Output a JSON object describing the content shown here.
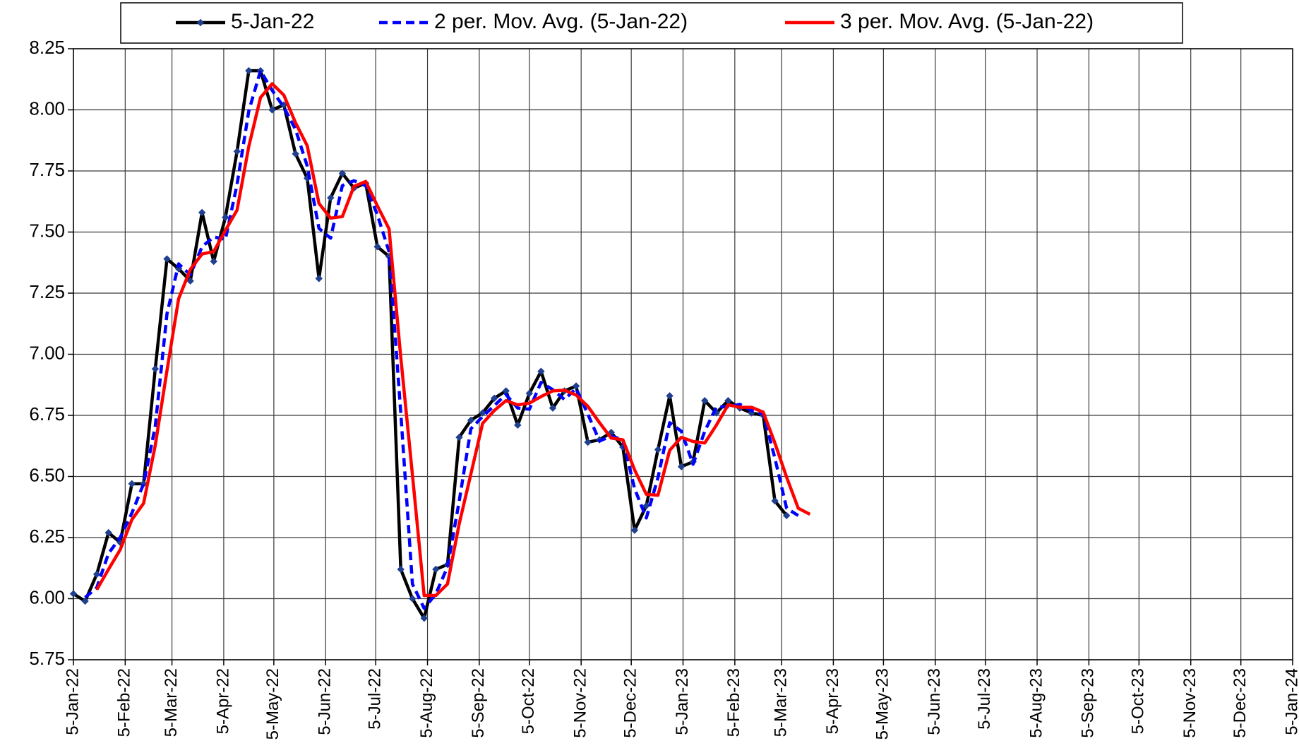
{
  "chart_data": {
    "type": "line",
    "x": [
      "2022-01-05",
      "2022-01-12",
      "2022-01-19",
      "2022-01-26",
      "2022-02-02",
      "2022-02-09",
      "2022-02-16",
      "2022-02-23",
      "2022-03-02",
      "2022-03-09",
      "2022-03-16",
      "2022-03-23",
      "2022-03-30",
      "2022-04-06",
      "2022-04-13",
      "2022-04-20",
      "2022-04-27",
      "2022-05-04",
      "2022-05-11",
      "2022-05-18",
      "2022-05-25",
      "2022-06-01",
      "2022-06-08",
      "2022-06-15",
      "2022-06-22",
      "2022-06-29",
      "2022-07-06",
      "2022-07-13",
      "2022-07-20",
      "2022-07-27",
      "2022-08-03",
      "2022-08-10",
      "2022-08-17",
      "2022-08-24",
      "2022-08-31",
      "2022-09-07",
      "2022-09-14",
      "2022-09-21",
      "2022-09-28",
      "2022-10-05",
      "2022-10-12",
      "2022-10-19",
      "2022-10-26",
      "2022-11-02",
      "2022-11-09",
      "2022-11-16",
      "2022-11-23",
      "2022-11-30",
      "2022-12-07",
      "2022-12-14",
      "2022-12-21",
      "2022-12-28",
      "2023-01-04",
      "2023-01-11",
      "2023-01-18",
      "2023-01-25",
      "2023-02-01",
      "2023-02-08",
      "2023-02-15",
      "2023-02-22",
      "2023-03-01",
      "2023-03-08",
      "2023-03-15",
      "2023-03-22"
    ],
    "series": [
      {
        "name": "5-Jan-22",
        "color": "#000000",
        "marker_color": "#1f3f8f",
        "style": "solid",
        "values": [
          6.02,
          5.99,
          6.1,
          6.27,
          6.23,
          6.47,
          6.47,
          6.94,
          7.39,
          7.35,
          7.3,
          7.58,
          7.38,
          7.56,
          7.83,
          8.16,
          8.16,
          8.0,
          8.02,
          7.82,
          7.72,
          7.31,
          7.64,
          7.74,
          7.68,
          7.7,
          7.44,
          7.4,
          6.12,
          6.0,
          5.92,
          6.12,
          6.14,
          6.66,
          6.73,
          6.76,
          6.82,
          6.85,
          6.71,
          6.84,
          6.93,
          6.78,
          6.85,
          6.87,
          6.64,
          6.65,
          6.68,
          6.62,
          6.28,
          6.38,
          6.61,
          6.83,
          6.54,
          6.56,
          6.81,
          6.76,
          6.81,
          6.78,
          6.76,
          6.75,
          6.4,
          6.34,
          null,
          null
        ]
      },
      {
        "name": "2 per. Mov. Avg. (5-Jan-22)",
        "color": "#0000ff",
        "style": "dashed",
        "values": [
          null,
          6.005,
          6.045,
          6.185,
          6.25,
          6.35,
          6.47,
          6.705,
          7.165,
          7.37,
          7.325,
          7.44,
          7.48,
          7.47,
          7.695,
          7.995,
          8.16,
          8.08,
          8.01,
          7.92,
          7.77,
          7.515,
          7.475,
          7.69,
          7.71,
          7.69,
          7.57,
          7.42,
          6.76,
          6.06,
          5.96,
          6.02,
          6.13,
          6.4,
          6.695,
          6.745,
          6.79,
          6.835,
          6.78,
          6.775,
          6.885,
          6.855,
          6.815,
          6.86,
          6.755,
          6.645,
          6.665,
          6.65,
          6.45,
          6.33,
          6.495,
          6.72,
          6.685,
          6.55,
          6.685,
          6.785,
          6.785,
          6.795,
          6.77,
          6.755,
          6.575,
          6.37,
          6.34,
          null
        ]
      },
      {
        "name": "3 per. Mov. Avg. (5-Jan-22)",
        "color": "#ff0000",
        "style": "solid",
        "values": [
          null,
          null,
          6.037,
          6.12,
          6.2,
          6.323,
          6.39,
          6.627,
          6.933,
          7.227,
          7.347,
          7.41,
          7.42,
          7.507,
          7.59,
          7.85,
          8.05,
          8.107,
          8.06,
          7.947,
          7.853,
          7.617,
          7.557,
          7.563,
          7.687,
          7.707,
          7.607,
          7.513,
          6.987,
          6.507,
          6.013,
          6.013,
          6.06,
          6.307,
          6.51,
          6.717,
          6.77,
          6.81,
          6.793,
          6.8,
          6.827,
          6.85,
          6.853,
          6.833,
          6.787,
          6.72,
          6.657,
          6.65,
          6.527,
          6.427,
          6.423,
          6.607,
          6.66,
          6.643,
          6.637,
          6.71,
          6.793,
          6.783,
          6.783,
          6.763,
          6.637,
          6.497,
          6.37,
          6.345
        ]
      }
    ],
    "xlim": [
      "2022-01-05",
      "2024-01-05"
    ],
    "xticks": [
      {
        "value": "2022-01-05",
        "label": "5-Jan-22"
      },
      {
        "value": "2022-02-05",
        "label": "5-Feb-22"
      },
      {
        "value": "2022-03-05",
        "label": "5-Mar-22"
      },
      {
        "value": "2022-04-05",
        "label": "5-Apr-22"
      },
      {
        "value": "2022-05-05",
        "label": "5-May-22"
      },
      {
        "value": "2022-06-05",
        "label": "5-Jun-22"
      },
      {
        "value": "2022-07-05",
        "label": "5-Jul-22"
      },
      {
        "value": "2022-08-05",
        "label": "5-Aug-22"
      },
      {
        "value": "2022-09-05",
        "label": "5-Sep-22"
      },
      {
        "value": "2022-10-05",
        "label": "5-Oct-22"
      },
      {
        "value": "2022-11-05",
        "label": "5-Nov-22"
      },
      {
        "value": "2022-12-05",
        "label": "5-Dec-22"
      },
      {
        "value": "2023-01-05",
        "label": "5-Jan-23"
      },
      {
        "value": "2023-02-05",
        "label": "5-Feb-23"
      },
      {
        "value": "2023-03-05",
        "label": "5-Mar-23"
      },
      {
        "value": "2023-04-05",
        "label": "5-Apr-23"
      },
      {
        "value": "2023-05-05",
        "label": "5-May-23"
      },
      {
        "value": "2023-06-05",
        "label": "5-Jun-23"
      },
      {
        "value": "2023-07-05",
        "label": "5-Jul-23"
      },
      {
        "value": "2023-08-05",
        "label": "5-Aug-23"
      },
      {
        "value": "2023-09-05",
        "label": "5-Sep-23"
      },
      {
        "value": "2023-10-05",
        "label": "5-Oct-23"
      },
      {
        "value": "2023-11-05",
        "label": "5-Nov-23"
      },
      {
        "value": "2023-12-05",
        "label": "5-Dec-23"
      },
      {
        "value": "2024-01-05",
        "label": "5-Jan-24"
      }
    ],
    "ylim": [
      5.75,
      8.25
    ],
    "yticks": [
      5.75,
      {
        "value": 6,
        "label": "6.00"
      },
      6.25,
      {
        "value": 6.5,
        "label": "6.50"
      },
      6.75,
      {
        "value": 7,
        "label": "7.00"
      },
      7.25,
      {
        "value": 7.5,
        "label": "7.50"
      },
      7.75,
      {
        "value": 8,
        "label": "8.00"
      },
      8.25
    ],
    "grid": true,
    "legend": "top"
  }
}
